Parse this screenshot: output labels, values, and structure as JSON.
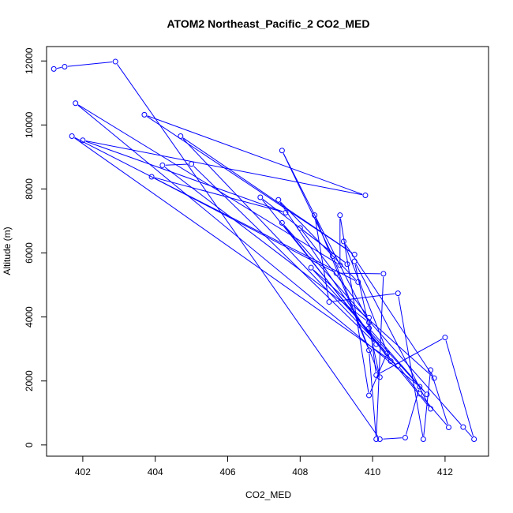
{
  "chart_data": {
    "type": "line",
    "title": "ATOM2 Northeast_Pacific_2 CO2_MED",
    "xlabel": "CO2_MED",
    "ylabel": "Altitude (m)",
    "xlim": [
      401.0,
      413.2
    ],
    "ylim": [
      -350,
      12450
    ],
    "xticks": [
      402,
      404,
      406,
      408,
      410,
      412
    ],
    "yticks": [
      0,
      2000,
      4000,
      6000,
      8000,
      10000,
      12000
    ],
    "grid": false,
    "line_color": "#0000ff",
    "marker_color": "#0000ff",
    "series": [
      {
        "points": [
          {
            "x": 401.2,
            "y": 11750
          },
          {
            "x": 401.5,
            "y": 11820
          },
          {
            "x": 402.9,
            "y": 11980
          },
          {
            "x": 410.2,
            "y": 180
          },
          {
            "x": 410.9,
            "y": 230
          },
          {
            "x": 411.3,
            "y": 1820
          },
          {
            "x": 401.8,
            "y": 10680
          },
          {
            "x": 409.1,
            "y": 5620
          },
          {
            "x": 409.1,
            "y": 7180
          },
          {
            "x": 409.9,
            "y": 1550
          },
          {
            "x": 410.4,
            "y": 2870
          },
          {
            "x": 404.7,
            "y": 9650
          },
          {
            "x": 409.5,
            "y": 5950
          },
          {
            "x": 403.7,
            "y": 10320
          },
          {
            "x": 409.8,
            "y": 7800
          },
          {
            "x": 402.0,
            "y": 9520
          },
          {
            "x": 407.6,
            "y": 7260
          },
          {
            "x": 403.9,
            "y": 8380
          },
          {
            "x": 409.0,
            "y": 5370
          },
          {
            "x": 410.3,
            "y": 5350
          },
          {
            "x": 410.1,
            "y": 180
          },
          {
            "x": 409.9,
            "y": 2960
          },
          {
            "x": 408.4,
            "y": 7180
          },
          {
            "x": 408.8,
            "y": 4470
          },
          {
            "x": 410.7,
            "y": 4740
          },
          {
            "x": 411.4,
            "y": 180
          },
          {
            "x": 411.6,
            "y": 2340
          },
          {
            "x": 412.1,
            "y": 550
          },
          {
            "x": 411.3,
            "y": 1600
          },
          {
            "x": 410.7,
            "y": 2480
          },
          {
            "x": 401.7,
            "y": 9650
          },
          {
            "x": 409.6,
            "y": 5090
          },
          {
            "x": 407.4,
            "y": 7660
          },
          {
            "x": 410.1,
            "y": 3150
          },
          {
            "x": 405.0,
            "y": 8780
          },
          {
            "x": 404.2,
            "y": 8740
          },
          {
            "x": 409.9,
            "y": 3830
          },
          {
            "x": 407.5,
            "y": 9200
          },
          {
            "x": 408.9,
            "y": 5900
          },
          {
            "x": 410.2,
            "y": 2120
          },
          {
            "x": 409.5,
            "y": 5740
          },
          {
            "x": 411.6,
            "y": 1130
          },
          {
            "x": 406.9,
            "y": 7740
          },
          {
            "x": 409.3,
            "y": 5650
          },
          {
            "x": 408.0,
            "y": 6780
          },
          {
            "x": 409.9,
            "y": 3980
          },
          {
            "x": 410.1,
            "y": 2180
          },
          {
            "x": 412.0,
            "y": 3360
          },
          {
            "x": 412.8,
            "y": 180
          },
          {
            "x": 412.5,
            "y": 560
          },
          {
            "x": 407.5,
            "y": 6940
          },
          {
            "x": 410.5,
            "y": 2620
          },
          {
            "x": 409.2,
            "y": 6360
          },
          {
            "x": 411.7,
            "y": 2090
          },
          {
            "x": 408.3,
            "y": 5540
          },
          {
            "x": 411.5,
            "y": 1580
          },
          {
            "x": 409.9,
            "y": 3650
          }
        ]
      }
    ]
  }
}
